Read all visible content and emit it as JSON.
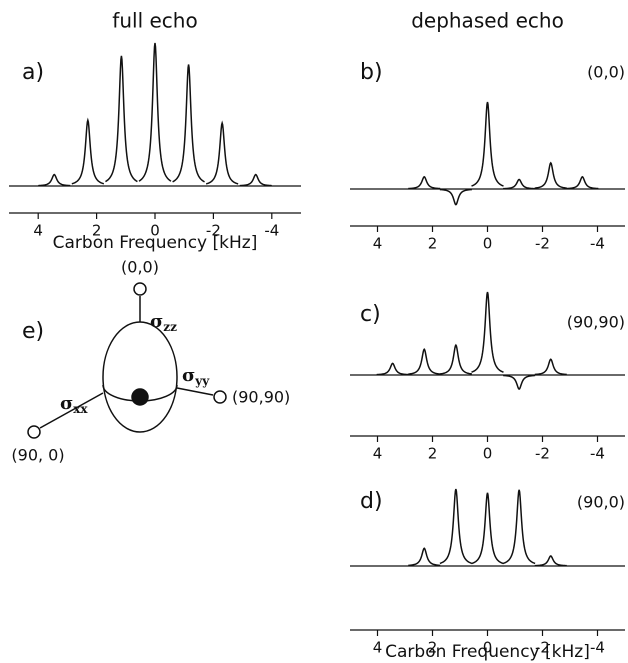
{
  "chart_data": [
    {
      "type": "spectrum",
      "title": "full echo",
      "label": "a)",
      "xlabel": "Carbon Frequency [kHz]",
      "x": [
        3.45,
        2.3,
        1.15,
        0,
        -1.15,
        -2.3,
        -3.45
      ],
      "values": [
        0.08,
        0.46,
        0.91,
        1,
        0.85,
        0.44,
        0.08
      ],
      "xlim": [
        5,
        -5
      ],
      "xticks": [
        4,
        2,
        0,
        -2,
        -4
      ],
      "color": "#111111"
    },
    {
      "type": "spectrum",
      "title": "dephased echo",
      "label": "b)",
      "annotation": "(0,0)",
      "x": [
        2.3,
        1.15,
        0,
        -1.15,
        -2.3,
        -3.45
      ],
      "values": [
        0.14,
        -0.18,
        1,
        0.11,
        0.3,
        0.14
      ],
      "xlim": [
        5,
        -5
      ],
      "xticks": [
        4,
        2,
        0,
        -2,
        -4
      ],
      "color": "#111111"
    },
    {
      "type": "spectrum",
      "label": "c)",
      "annotation": "(90,90)",
      "x": [
        3.45,
        2.3,
        1.15,
        0,
        -1.15,
        -2.3
      ],
      "values": [
        0.14,
        0.31,
        0.36,
        1,
        -0.17,
        0.19
      ],
      "xlim": [
        5,
        -5
      ],
      "xticks": [
        4,
        2,
        0,
        -2,
        -4
      ],
      "color": "#111111"
    },
    {
      "type": "spectrum",
      "label": "d)",
      "annotation": "(90,0)",
      "xlabel": "Carbon Frequency [kHz]",
      "x": [
        2.3,
        1.15,
        0,
        -1.15,
        -2.3
      ],
      "values": [
        0.23,
        1,
        0.95,
        0.99,
        0.13
      ],
      "xlim": [
        5,
        -5
      ],
      "xticks": [
        4,
        2,
        0,
        -2,
        -4
      ],
      "color": "#111111"
    }
  ],
  "diagram": {
    "label": "e)",
    "top": "(0,0)",
    "right": "(90,90)",
    "left": "(90, 0)",
    "symbol": "σ",
    "zz": "zz",
    "yy": "yy",
    "xx": "xx"
  }
}
